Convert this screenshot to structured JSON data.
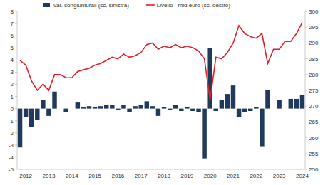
{
  "chart_data": {
    "type": "bar",
    "categories": [
      null,
      "2012",
      null,
      null,
      null,
      "2013",
      null,
      null,
      null,
      "2014",
      null,
      null,
      null,
      "2015",
      null,
      null,
      null,
      "2016",
      null,
      null,
      null,
      "2017",
      null,
      null,
      null,
      "2018",
      null,
      null,
      null,
      "2019",
      null,
      null,
      null,
      "2020",
      null,
      null,
      null,
      "2021",
      null,
      null,
      null,
      "2022",
      null,
      null,
      null,
      "2023",
      null,
      null,
      null,
      "2024"
    ],
    "series": [
      {
        "name": "var. congiunturali (sc. sinistra)",
        "type": "bar",
        "color": "#1f3a5c",
        "values": [
          -3.2,
          -0.7,
          -1.5,
          -0.9,
          0.7,
          -0.6,
          1.4,
          0,
          -0.3,
          0,
          0.5,
          0.1,
          0.2,
          0.1,
          0.2,
          0.3,
          0.3,
          -0.1,
          0.3,
          -0.3,
          0.2,
          0.3,
          0.6,
          0.2,
          -0.6,
          0.1,
          -0.1,
          0.3,
          -0.2,
          0.1,
          -0.2,
          -0.3,
          -4.1,
          5.0,
          -0.2,
          0.7,
          1.2,
          1.9,
          -0.7,
          -0.3,
          -0.2,
          0.1,
          -3.1,
          1.5,
          0,
          0.7,
          0,
          0.8,
          0.8,
          1.1
        ]
      },
      {
        "name": "Livello - mld euro (sc. destro)",
        "type": "line",
        "axis": "y2",
        "color": "#e0202a",
        "values": [
          284.5,
          283,
          278,
          275,
          277,
          275,
          280,
          280,
          279,
          279,
          281,
          281.5,
          282,
          283,
          283.5,
          284.5,
          285.5,
          285,
          286.5,
          285.5,
          286,
          287,
          289.5,
          290,
          288,
          289,
          288.5,
          289.5,
          288.5,
          289,
          288.5,
          287.5,
          285,
          272,
          285.5,
          285,
          287,
          290,
          295.5,
          293,
          292,
          291.5,
          293,
          283.5,
          288,
          288,
          290.5,
          290.5,
          293,
          296.5
        ]
      }
    ],
    "ylim": [
      -5,
      8
    ],
    "yticks": [
      -5,
      -4,
      -3,
      -2,
      -1,
      0,
      1,
      2,
      3,
      4,
      5,
      6,
      7,
      8
    ],
    "y2lim": [
      250,
      300
    ],
    "y2ticks": [
      250,
      255,
      260,
      265,
      270,
      275,
      280,
      285,
      290,
      295,
      300
    ],
    "grid": false,
    "legend": "top"
  }
}
